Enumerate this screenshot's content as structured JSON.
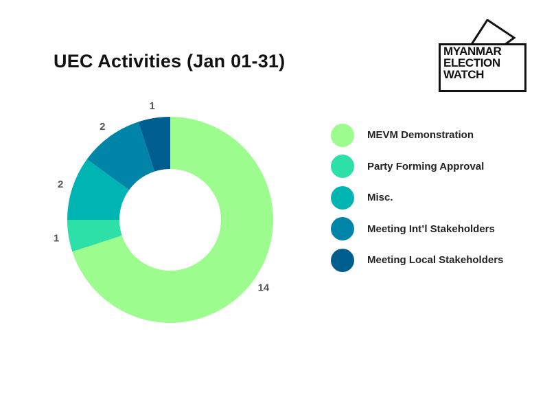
{
  "title": "UEC Activities (Jan 01-31)",
  "logo": {
    "lines": [
      "MYANMAR",
      "ELECTION",
      "WATCH"
    ]
  },
  "colors": {
    "mevm": "#9dfc8e",
    "party": "#2de0a8",
    "misc": "#00b4b4",
    "intl": "#0084a8",
    "local": "#005e8e"
  },
  "chart_data": {
    "type": "pie",
    "donut": true,
    "slices": [
      {
        "name": "MEVM Demonstration",
        "value": 14,
        "color": "#9dfc8e"
      },
      {
        "name": "Party Forming Approval",
        "value": 1,
        "color": "#2de0a8"
      },
      {
        "name": "Misc.",
        "value": 2,
        "color": "#00b4b4"
      },
      {
        "name": "Meeting Int’l Stakeholders",
        "value": 2,
        "color": "#0084a8"
      },
      {
        "name": "Meeting Local Stakeholders",
        "value": 1,
        "color": "#005e8e"
      }
    ],
    "legend": "right"
  }
}
